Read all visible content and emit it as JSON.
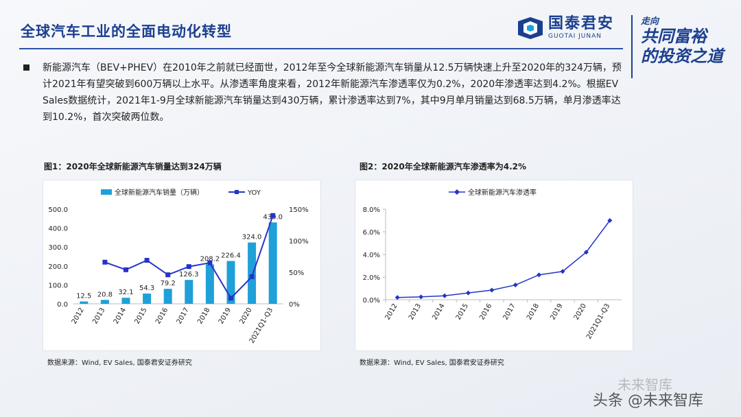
{
  "page": {
    "title": "全球汽车工业的全面电动化转型",
    "logo": {
      "cn": "国泰君安",
      "en": "GUOTAI JUNAN"
    },
    "slogan": {
      "line1": "走向",
      "line2": "共同富裕",
      "line3": "的投资之道"
    },
    "bullet": "新能源汽车（BEV+PHEV）在2010年之前就已经面世，2012年至今全球新能源汽车销量从12.5万辆快速上升至2020年的324万辆，预计2021年有望突破到600万辆以上水平。从渗透率角度来看，2012年新能源汽车渗透率仅为0.2%，2020年渗透率达到4.2%。根据EV Sales数据统计，2021年1-9月全球新能源汽车销量达到430万辆，累计渗透率达到7%，其中9月单月销量达到68.5万辆，单月渗透率达到10.2%，首次突破两位数。",
    "fig1_caption": "图1：2020年全球新能源汽车销量达到324万辆",
    "fig2_caption": "图2：2020年全球新能源汽车渗透率为4.2%",
    "source1": "数据来源：Wind, EV Sales, 国泰君安证券研究",
    "source2": "数据来源：Wind, EV Sales, 国泰君安证券研究",
    "watermark1": "未来智库",
    "watermark2": "头条 @未来智库"
  },
  "chart_data": [
    {
      "type": "bar",
      "categories": [
        "2012",
        "2013",
        "2014",
        "2015",
        "2016",
        "2017",
        "2018",
        "2019",
        "2020",
        "2021Q1-Q3"
      ],
      "series": [
        {
          "name": "全球新能源汽车销量（万辆）",
          "type": "bar",
          "axis": "left",
          "color": "#1fa0d8",
          "values": [
            12.5,
            20.8,
            32.1,
            54.3,
            79.2,
            126.3,
            208.2,
            226.4,
            324.0,
            430.0
          ],
          "labels": [
            "12.5",
            "20.8",
            "32.1",
            "54.3",
            "79.2",
            "126.3",
            "208.2",
            "226.4",
            "324.0",
            "430.0"
          ]
        },
        {
          "name": "YOY",
          "type": "line",
          "axis": "right",
          "color": "#2533c8",
          "values": [
            null,
            66,
            54,
            69,
            46,
            59,
            65,
            9,
            43,
            140
          ]
        }
      ],
      "ylim_left": [
        0,
        500
      ],
      "yticks_left": [
        "0.0",
        "100.0",
        "200.0",
        "300.0",
        "400.0",
        "500.0"
      ],
      "ylim_right": [
        0,
        150
      ],
      "yticks_right": [
        "0%",
        "50%",
        "100%",
        "150%"
      ],
      "legend": "top"
    },
    {
      "type": "line",
      "categories": [
        "2012",
        "2013",
        "2014",
        "2015",
        "2016",
        "2017",
        "2018",
        "2019",
        "2020",
        "2021Q1-Q3"
      ],
      "series": [
        {
          "name": "全球新能源汽车渗透率",
          "color": "#2533c8",
          "values": [
            0.2,
            0.25,
            0.35,
            0.6,
            0.85,
            1.3,
            2.2,
            2.5,
            4.2,
            7.0
          ]
        }
      ],
      "ylim": [
        0,
        8
      ],
      "yticks": [
        "0.0%",
        "2.0%",
        "4.0%",
        "6.0%",
        "8.0%"
      ],
      "legend": "top"
    }
  ]
}
